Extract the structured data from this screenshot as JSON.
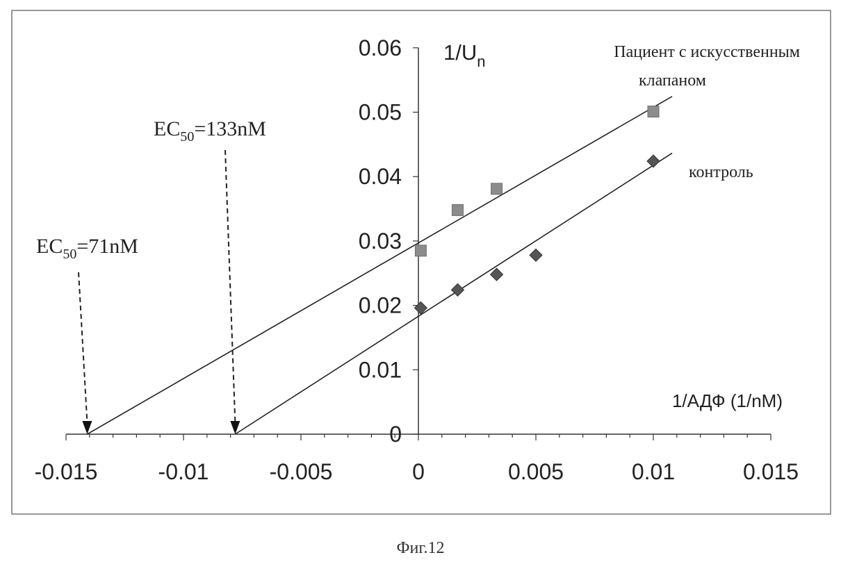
{
  "chart_data": {
    "type": "scatter",
    "x_axis": {
      "label": "1/АДФ (1/nM)",
      "range": [
        -0.015,
        0.015
      ],
      "ticks": [
        -0.015,
        -0.01,
        -0.005,
        0,
        0.005,
        0.01,
        0.015
      ],
      "tick_labels": [
        "-0.015",
        "-0.01",
        "-0.005",
        "0",
        "0.005",
        "0.01",
        "0.015"
      ]
    },
    "y_axis": {
      "label_main": "1/U",
      "label_sub": "n",
      "range": [
        0,
        0.06
      ],
      "ticks": [
        0,
        0.01,
        0.02,
        0.03,
        0.04,
        0.05,
        0.06
      ],
      "tick_labels": [
        "0",
        "0.01",
        "0.02",
        "0.03",
        "0.04",
        "0.05",
        "0.06"
      ]
    },
    "grid": false,
    "series": [
      {
        "name_line1": "Пациент с искусственным",
        "name_line2": "клапаном",
        "marker": "square",
        "color": "#8c8c8c",
        "points": [
          [
            0.0001,
            0.0285
          ],
          [
            0.00167,
            0.0348
          ],
          [
            0.00333,
            0.0381
          ],
          [
            0.01,
            0.0501
          ]
        ],
        "fit": {
          "x_intercept": -0.0141,
          "y_intercept": 0.0297,
          "x_end": 0.0108
        }
      },
      {
        "name": "контроль",
        "marker": "diamond",
        "color": "#555555",
        "points": [
          [
            0.0001,
            0.0196
          ],
          [
            0.00167,
            0.0224
          ],
          [
            0.00333,
            0.0248
          ],
          [
            0.005,
            0.0278
          ],
          [
            0.01,
            0.0424
          ]
        ],
        "fit": {
          "x_intercept": -0.0078,
          "y_intercept": 0.0183,
          "x_end": 0.0108
        }
      }
    ],
    "annotations": [
      {
        "text_main": "EC",
        "text_sub": "50",
        "text_tail": "=71nM",
        "x": -0.0141
      },
      {
        "text_main": "EC",
        "text_sub": "50",
        "text_tail": "=133nM",
        "x": -0.0078
      }
    ]
  },
  "caption": "Фиг.12"
}
